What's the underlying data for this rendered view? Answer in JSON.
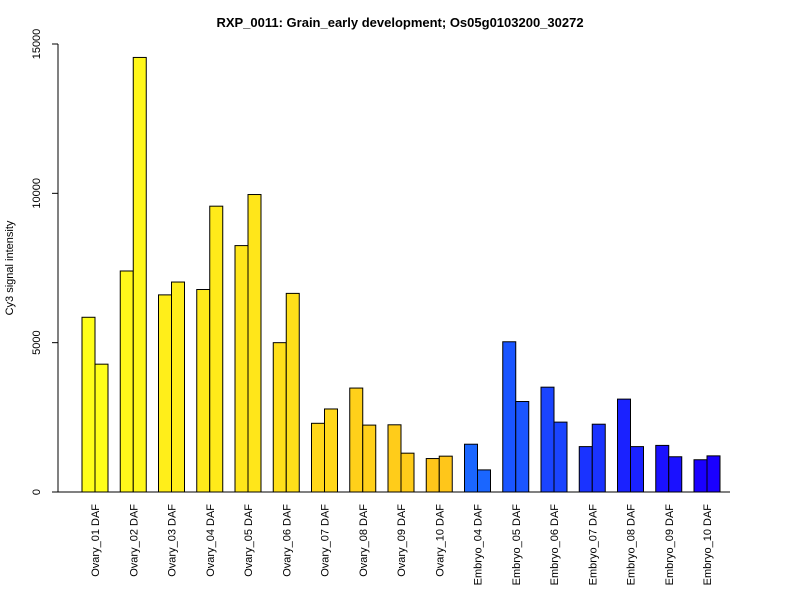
{
  "chart_data": {
    "type": "bar",
    "title": "RXP_0011: Grain_early development; Os05g0103200_30272",
    "xlabel": "",
    "ylabel": "Cy3 signal intensity",
    "ylim": [
      0,
      15000
    ],
    "yticks": [
      "0",
      "5000",
      "10000",
      "15000"
    ],
    "categories": [
      "Ovary_01 DAF",
      "Ovary_02 DAF",
      "Ovary_03 DAF",
      "Ovary_04 DAF",
      "Ovary_05 DAF",
      "Ovary_06 DAF",
      "Ovary_07 DAF",
      "Ovary_08 DAF",
      "Ovary_09 DAF",
      "Ovary_10 DAF",
      "Embryo_04 DAF",
      "Embryo_05 DAF",
      "Embryo_06 DAF",
      "Embryo_07 DAF",
      "Embryo_08 DAF",
      "Embryo_09 DAF",
      "Embryo_10 DAF"
    ],
    "colors": [
      "#ffff1a",
      "#fff71a",
      "#ffee1a",
      "#ffea1a",
      "#ffe61a",
      "#ffe01a",
      "#ffd71a",
      "#ffd01a",
      "#ffcc1a",
      "#ffc61a",
      "#1a66ff",
      "#1a55ff",
      "#1a44ff",
      "#1a33ff",
      "#1a22ff",
      "#1a11ff",
      "#1a00ff"
    ],
    "series": [
      {
        "values": [
          5850,
          7400,
          6600,
          6780,
          8250,
          5000,
          2300,
          3480,
          2250,
          1120,
          1600,
          5030,
          3510,
          1520,
          3110,
          1560,
          1080
        ]
      },
      {
        "values": [
          4280,
          14550,
          7030,
          9570,
          9960,
          6650,
          2780,
          2240,
          1300,
          1200,
          740,
          3030,
          2340,
          2270,
          1520,
          1180,
          1210
        ]
      }
    ],
    "grid": false,
    "legend": "none"
  }
}
